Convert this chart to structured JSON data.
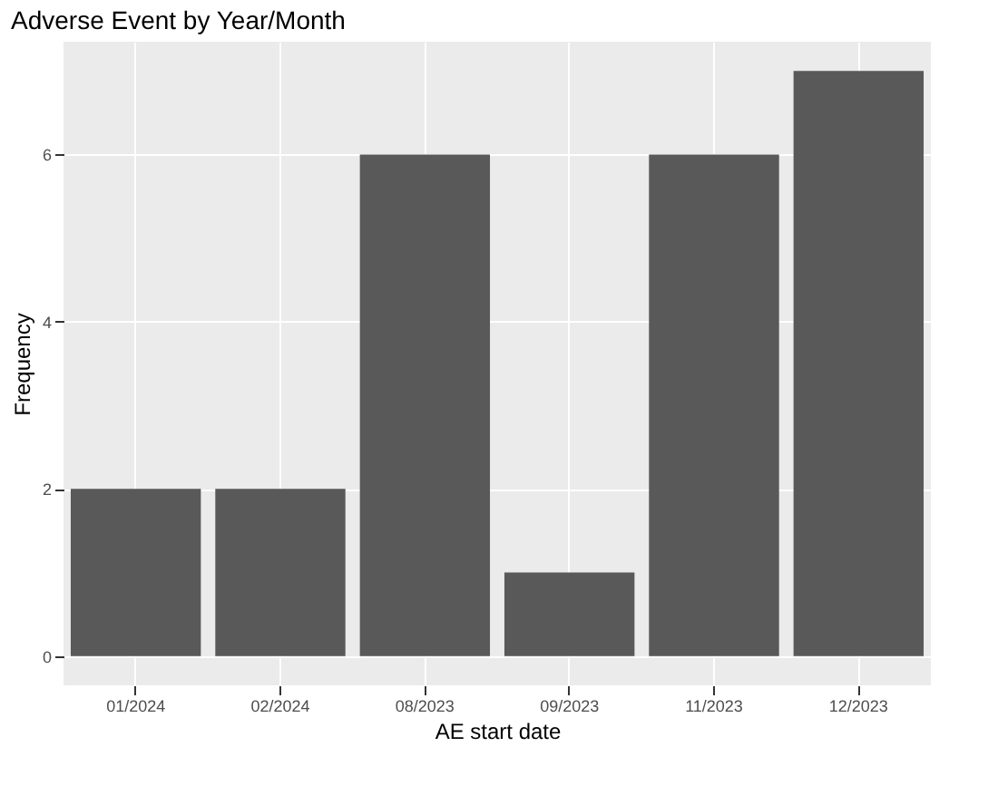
{
  "chart_data": {
    "type": "bar",
    "title": "Adverse Event by Year/Month",
    "xlabel": "AE start date",
    "ylabel": "Frequency",
    "categories": [
      "01/2024",
      "02/2024",
      "08/2023",
      "09/2023",
      "11/2023",
      "12/2023"
    ],
    "values": [
      2,
      2,
      6,
      1,
      6,
      7
    ],
    "color": "#595959",
    "ylim": [
      -0.35,
      7.35
    ],
    "yticks": [
      0,
      2,
      4,
      6
    ],
    "grid": true
  }
}
